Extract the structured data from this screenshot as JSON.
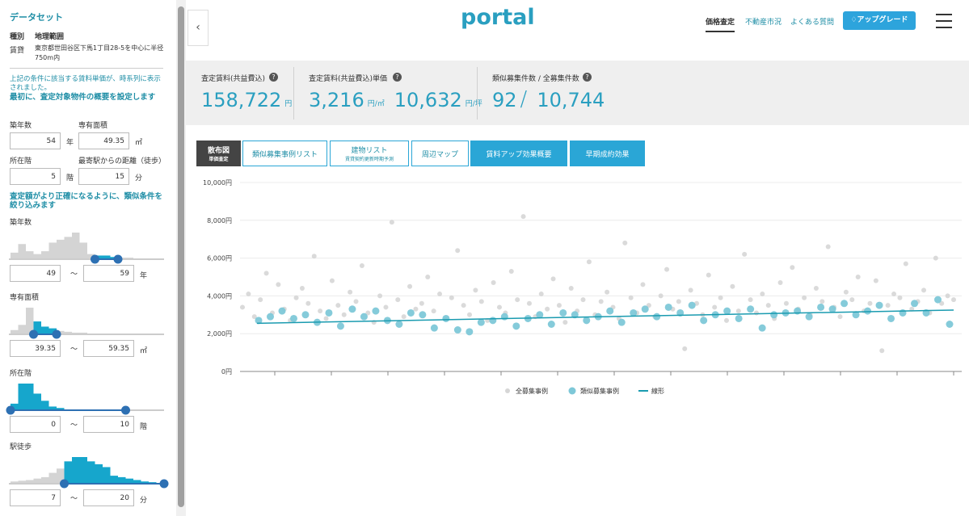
{
  "sidebar": {
    "title": "データセット",
    "dataset_rows": [
      [
        "種別",
        "地理範囲"
      ],
      [
        "賃貸",
        "東京都世田谷区下馬1丁目28-5を中心に半径750m内"
      ]
    ],
    "notice": "上記の条件に該当する賃料単価が、時系列に表示されました。",
    "setup_heading": "最初に、査定対象物件の概要を設定します",
    "setup_fields": [
      {
        "label": "築年数",
        "value": "54",
        "unit": "年"
      },
      {
        "label": "専有面積",
        "value": "49.35",
        "unit": "㎡"
      },
      {
        "label": "所在階",
        "value": "5",
        "unit": "階"
      },
      {
        "label": "最寄駅からの距離（徒歩）",
        "value": "15",
        "unit": "分"
      }
    ],
    "filter_heading": "査定額がより正確になるように、類似条件を絞り込みます",
    "filters": [
      {
        "label": "築年数",
        "histogram": [
          8,
          20,
          10,
          6,
          10,
          22,
          26,
          30,
          36,
          22,
          6,
          4,
          4,
          2,
          1,
          1,
          0,
          0,
          0,
          0
        ],
        "selected_bins": [
          11,
          13
        ],
        "min": "49",
        "separator": "〜",
        "max": "59",
        "unit": "年"
      },
      {
        "label": "専有面積",
        "histogram": [
          4,
          10,
          30,
          14,
          8,
          6,
          3,
          2,
          1,
          1,
          0,
          0,
          0,
          0,
          0,
          0,
          0,
          0,
          0,
          0
        ],
        "selected_bins": [
          3,
          5
        ],
        "min": "39.35",
        "separator": "〜",
        "max": "59.35",
        "unit": "㎡"
      },
      {
        "label": "所在階",
        "histogram": [
          8,
          36,
          36,
          22,
          12,
          4,
          2,
          0,
          0,
          0,
          0,
          0,
          0,
          0,
          0,
          0,
          0,
          0,
          0,
          0
        ],
        "selected_bins": [
          0,
          14
        ],
        "min": "0",
        "separator": "〜",
        "max": "10",
        "unit": "階"
      },
      {
        "label": "駅徒歩",
        "histogram": [
          2,
          3,
          4,
          6,
          8,
          14,
          20,
          30,
          36,
          36,
          30,
          26,
          22,
          10,
          8,
          6,
          4,
          2,
          1,
          0
        ],
        "selected_bins": [
          7,
          19
        ],
        "min": "7",
        "separator": "〜",
        "max": "20",
        "unit": "分"
      }
    ]
  },
  "header": {
    "logo": "portal",
    "nav": [
      "価格査定",
      "不動産市況",
      "よくある質問"
    ],
    "button": "アップグレード"
  },
  "stats": [
    {
      "label": "査定賃料(共益費込)",
      "parts": [
        {
          "value": "158,722",
          "unit": "円"
        }
      ]
    },
    {
      "label": "査定賃料(共益費込)単価",
      "parts": [
        {
          "value": "3,216",
          "unit": "円/㎡"
        },
        {
          "value": "10,632",
          "unit": "円/坪"
        }
      ]
    },
    {
      "label": "類似募集件数 / 全募集件数",
      "parts": [
        {
          "value": "92",
          "unit": "/"
        },
        {
          "value": "10,744",
          "unit": ""
        }
      ]
    }
  ],
  "tabs": [
    [
      "散布図",
      "単価査定"
    ],
    [
      "類似募集事例リスト"
    ],
    [
      "建物リスト",
      "賃貸契約更新時期予測"
    ],
    [
      "周辺マップ"
    ],
    [
      "賃料アップ効果概要"
    ],
    [
      "早期成約効果"
    ]
  ],
  "chart_data": {
    "type": "scatter",
    "ylim": [
      0,
      10000
    ],
    "yticks": [
      {
        "value": 0,
        "label": "0円"
      },
      {
        "value": 2000,
        "label": "2,000円"
      },
      {
        "value": 4000,
        "label": "4,000円"
      },
      {
        "value": 6000,
        "label": "6,000円"
      },
      {
        "value": 8000,
        "label": "8,000円"
      },
      {
        "value": 10000,
        "label": "10,000円"
      }
    ],
    "grid": true,
    "series": [
      {
        "name": "全募集事例",
        "color": "#d6d6d6",
        "values": [
          3400,
          4100,
          2900,
          3800,
          5200,
          3100,
          4600,
          3300,
          2700,
          3900,
          4400,
          3600,
          6100,
          3200,
          2800,
          4800,
          3500,
          3000,
          4200,
          3700,
          5600,
          3100,
          2600,
          4000,
          3400,
          7900,
          3800,
          2900,
          4500,
          3300,
          3600,
          5000,
          3200,
          4100,
          2800,
          3900,
          6400,
          3500,
          3000,
          4300,
          3700,
          2700,
          4700,
          3400,
          3100,
          5300,
          3800,
          8200,
          3600,
          2900,
          4100,
          3300,
          4900,
          3500,
          2600,
          4400,
          3200,
          3800,
          5800,
          3000,
          3700,
          4200,
          3400,
          2800,
          6800,
          3900,
          3100,
          4600,
          3500,
          2900,
          4000,
          5400,
          3300,
          3700,
          1200,
          4300,
          3600,
          3000,
          5100,
          3400,
          3900,
          2700,
          4500,
          3200,
          6200,
          3800,
          3100,
          4100,
          3500,
          2800,
          4700,
          3600,
          5500,
          3300,
          3900,
          3000,
          4400,
          3700,
          6600,
          3400,
          2900,
          4200,
          3800,
          5000,
          3200,
          3600,
          4800,
          1100,
          3500,
          4100,
          3900,
          5700,
          3300,
          3700,
          4300,
          3100,
          6000,
          3600,
          4000,
          3800
        ]
      },
      {
        "name": "類似募集事例",
        "color": "#7ec8d8",
        "values": [
          2700,
          2900,
          3200,
          2800,
          3000,
          2600,
          3100,
          2400,
          3300,
          2900,
          3200,
          2700,
          2500,
          3100,
          3000,
          2300,
          2800,
          2200,
          2100,
          2600,
          2700,
          2900,
          2400,
          2800,
          3000,
          2500,
          3100,
          3000,
          2700,
          2900,
          3200,
          2600,
          3100,
          3300,
          2900,
          3400,
          3100,
          3500,
          2700,
          3000,
          3200,
          2800,
          3300,
          2300,
          3000,
          3100,
          3200,
          2900,
          3400,
          3300,
          3600,
          3000,
          3200,
          3500,
          2800,
          3100,
          3600,
          3100,
          3800,
          2500
        ]
      },
      {
        "name": "線形",
        "color": "#1a9bb0",
        "type": "line",
        "values": [
          2550,
          3250
        ]
      }
    ]
  }
}
